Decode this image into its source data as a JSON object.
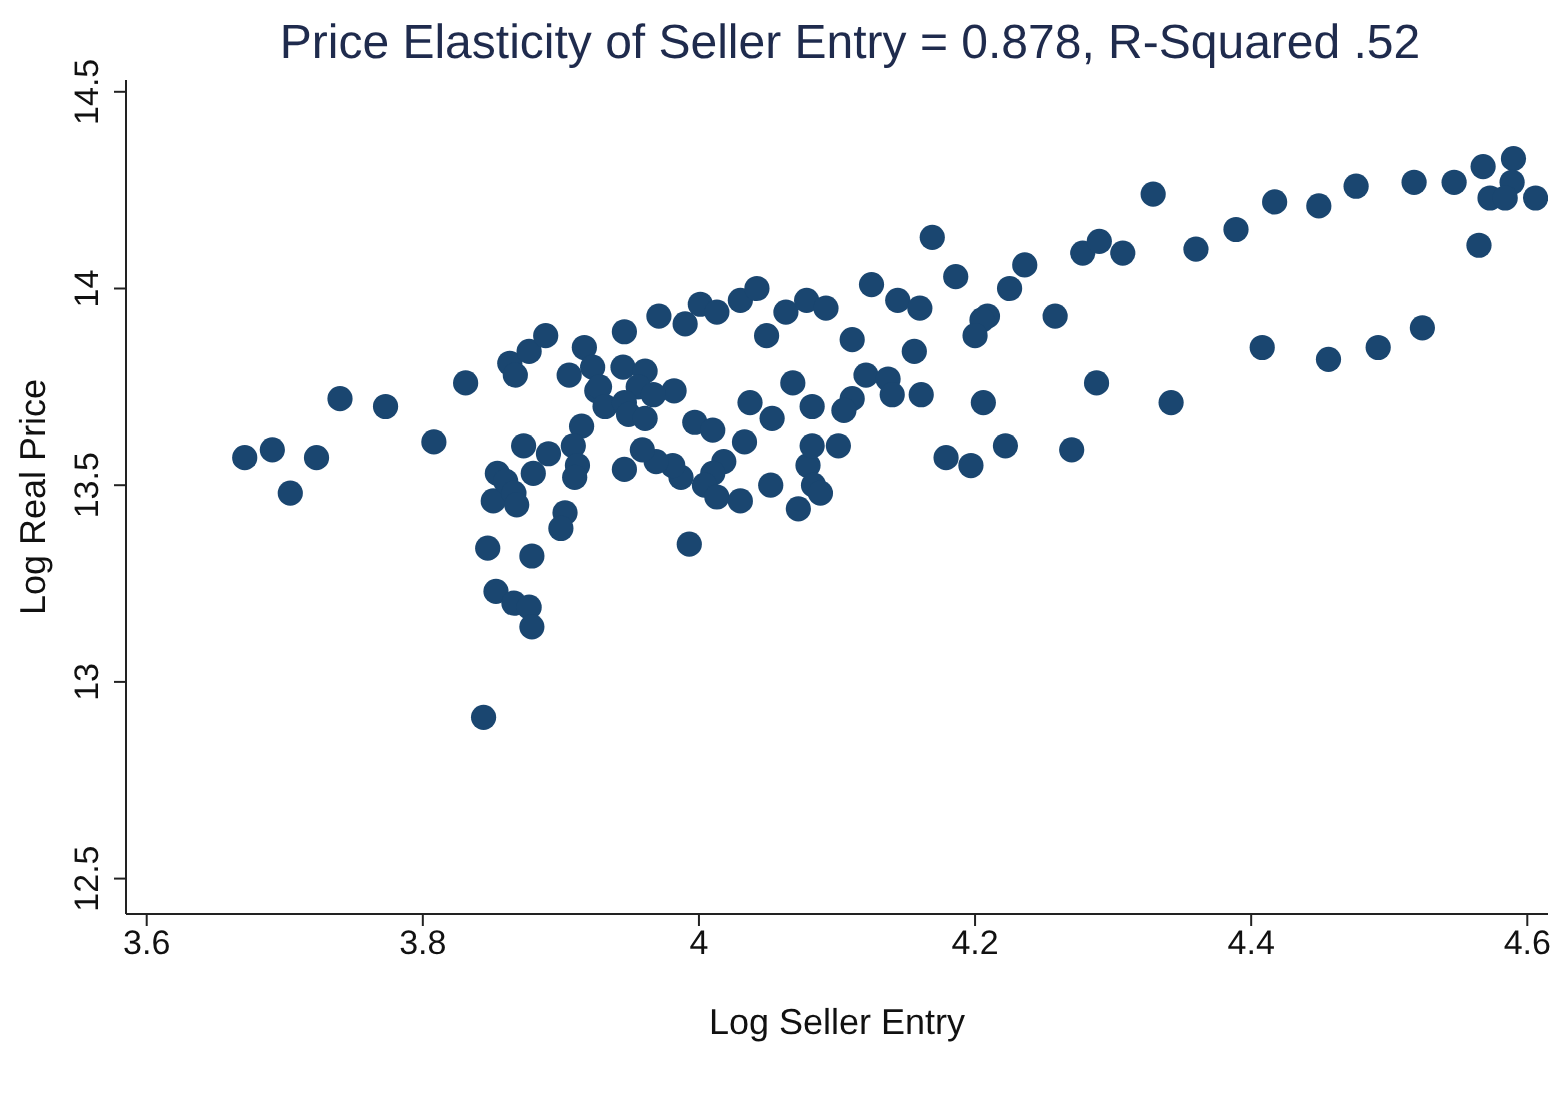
{
  "chart_data": {
    "type": "scatter",
    "title": "Price Elasticity of Seller Entry = 0.878, R-Squared .52",
    "xlabel": "Log Seller Entry",
    "ylabel": "Log Real Price",
    "xlim": [
      3.585,
      4.615
    ],
    "xticks": [
      {
        "value": 3.6,
        "label": "3.6"
      },
      {
        "value": 3.8,
        "label": "3.8"
      },
      {
        "value": 4,
        "label": "4"
      },
      {
        "value": 4.2,
        "label": "4.2"
      },
      {
        "value": 4.4,
        "label": "4.4"
      },
      {
        "value": 4.6,
        "label": "4.6"
      }
    ],
    "ylim": [
      12.41,
      14.53
    ],
    "yticks": [
      {
        "value": 12.5,
        "label": "12.5"
      },
      {
        "value": 13,
        "label": "13"
      },
      {
        "value": 13.5,
        "label": "13.5"
      },
      {
        "value": 14,
        "label": "14"
      },
      {
        "value": 14.5,
        "label": "14.5"
      }
    ],
    "grid": false,
    "legend": false,
    "marker": "circle",
    "series": [
      {
        "color": "#1a4670",
        "x": [
          3.671,
          3.691,
          3.704,
          3.723,
          3.74,
          3.773,
          3.808,
          3.831,
          3.844,
          3.847,
          3.853,
          3.851,
          3.854,
          3.863,
          3.867,
          3.877,
          3.889,
          3.917,
          3.906,
          3.923,
          3.926,
          3.873,
          3.891,
          3.88,
          3.86,
          3.866,
          3.868,
          3.915,
          3.909,
          3.912,
          3.91,
          3.903,
          3.9,
          3.879,
          3.866,
          3.877,
          3.879,
          3.928,
          3.932,
          3.946,
          3.971,
          3.99,
          4.001,
          4.013,
          4.03,
          4.042,
          4.049,
          4.063,
          4.078,
          4.092,
          4.111,
          4.125,
          4.144,
          4.16,
          4.169,
          4.186,
          4.225,
          4.236,
          4.209,
          4.205,
          4.2,
          4.156,
          4.121,
          4.137,
          4.14,
          4.161,
          4.111,
          4.105,
          4.068,
          4.082,
          4.053,
          4.037,
          3.982,
          3.945,
          3.961,
          3.956,
          3.967,
          3.946,
          3.949,
          3.961,
          3.997,
          4.01,
          4.033,
          4.018,
          4.01,
          4.004,
          4.013,
          4.03,
          4.052,
          4.072,
          4.079,
          4.082,
          4.101,
          4.083,
          4.088,
          3.987,
          3.981,
          3.969,
          3.959,
          3.946,
          3.993,
          4.206,
          4.179,
          4.197,
          4.222,
          4.258,
          4.278,
          4.29,
          4.307,
          4.329,
          4.36,
          4.389,
          4.417,
          4.449,
          4.476,
          4.518,
          4.547,
          4.568,
          4.59,
          4.589,
          4.573,
          4.584,
          4.606,
          4.565,
          4.524,
          4.492,
          4.456,
          4.408,
          4.288,
          4.342,
          4.27
        ],
        "values": [
          13.57,
          13.59,
          13.48,
          13.57,
          13.72,
          13.7,
          13.61,
          13.76,
          12.91,
          13.34,
          13.23,
          13.46,
          13.53,
          13.81,
          13.78,
          13.84,
          13.88,
          13.85,
          13.78,
          13.8,
          13.74,
          13.6,
          13.58,
          13.53,
          13.51,
          13.48,
          13.45,
          13.65,
          13.6,
          13.55,
          13.52,
          13.43,
          13.39,
          13.32,
          13.2,
          13.19,
          13.14,
          13.75,
          13.7,
          13.89,
          13.93,
          13.91,
          13.96,
          13.94,
          13.97,
          14.0,
          13.88,
          13.94,
          13.97,
          13.95,
          13.87,
          14.01,
          13.97,
          13.95,
          14.13,
          14.03,
          14.0,
          14.06,
          13.93,
          13.92,
          13.88,
          13.84,
          13.78,
          13.77,
          13.73,
          13.73,
          13.72,
          13.69,
          13.76,
          13.7,
          13.67,
          13.71,
          13.74,
          13.8,
          13.79,
          13.75,
          13.73,
          13.71,
          13.68,
          13.67,
          13.66,
          13.64,
          13.61,
          13.56,
          13.53,
          13.5,
          13.47,
          13.46,
          13.5,
          13.44,
          13.55,
          13.6,
          13.6,
          13.5,
          13.48,
          13.52,
          13.55,
          13.56,
          13.59,
          13.54,
          13.35,
          13.71,
          13.57,
          13.55,
          13.6,
          13.93,
          14.09,
          14.12,
          14.09,
          14.24,
          14.1,
          14.15,
          14.22,
          14.21,
          14.26,
          14.27,
          14.27,
          14.31,
          14.33,
          14.27,
          14.23,
          14.23,
          14.23,
          14.11,
          13.9,
          13.85,
          13.82,
          13.85,
          13.76,
          13.71,
          13.59
        ]
      }
    ]
  }
}
